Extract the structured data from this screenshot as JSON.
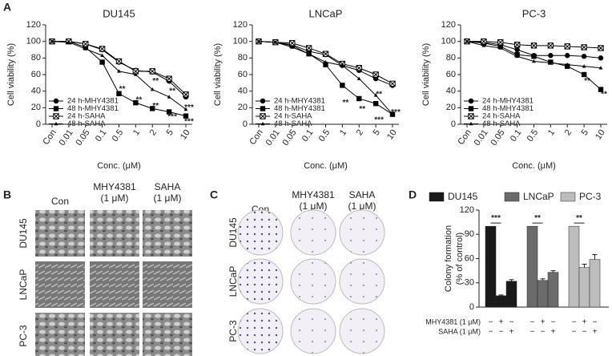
{
  "panel_labels": [
    "A",
    "B",
    "C",
    "D"
  ],
  "chart_data": [
    {
      "type": "line",
      "title": "DU145",
      "ylabel": "Cell viability (%)",
      "xlabel": "Conc. (μM)",
      "categories": [
        "Con",
        "0.01",
        "0.05",
        "0.1",
        "0.5",
        "1",
        "2",
        "5",
        "10"
      ],
      "ylim": [
        0,
        120
      ],
      "yticks": [
        0,
        20,
        40,
        60,
        80,
        100,
        120
      ],
      "series": [
        {
          "name": "24 h-MHY4381",
          "color": "#000000",
          "marker": "circle",
          "values": [
            100,
            100,
            97,
            90,
            75,
            65,
            63,
            52,
            33
          ]
        },
        {
          "name": "48 h-MHY4381",
          "color": "#000000",
          "marker": "square",
          "values": [
            100,
            100,
            93,
            75,
            37,
            26,
            19,
            15,
            10
          ]
        },
        {
          "name": "24 h-SAHA",
          "color": "#000000",
          "marker": "open-square",
          "values": [
            100,
            100,
            97,
            91,
            76,
            64,
            64,
            55,
            36
          ]
        },
        {
          "name": "48 h-SAHA",
          "color": "#000000",
          "marker": "triangle",
          "values": [
            100,
            99,
            91,
            83,
            64,
            60,
            42,
            33,
            18
          ]
        }
      ],
      "annotations": [
        {
          "text": "**",
          "x": "0.5",
          "y": 42
        },
        {
          "text": "**",
          "x": "1",
          "y": 29
        },
        {
          "text": "**",
          "x": "2",
          "y": 52
        },
        {
          "text": "**",
          "x": "2",
          "y": 22
        },
        {
          "text": "**",
          "x": "5",
          "y": 40
        },
        {
          "text": "***",
          "x": "5",
          "y": 9
        },
        {
          "text": "***",
          "x": "10",
          "y": 20
        },
        {
          "text": "***",
          "x": "10",
          "y": 3
        }
      ]
    },
    {
      "type": "line",
      "title": "LNCaP",
      "ylabel": "Cell viability (%)",
      "xlabel": "Conc. (μM)",
      "categories": [
        "Con",
        "0.01",
        "0.05",
        "0.1",
        "0.5",
        "1",
        "2",
        "5",
        "10"
      ],
      "ylim": [
        0,
        120
      ],
      "yticks": [
        0,
        20,
        40,
        60,
        80,
        100,
        120
      ],
      "series": [
        {
          "name": "24 h-MHY4381",
          "color": "#000000",
          "marker": "circle",
          "values": [
            100,
            99,
            96,
            88,
            84,
            71,
            65,
            55,
            47
          ]
        },
        {
          "name": "48 h-MHY4381",
          "color": "#000000",
          "marker": "square",
          "values": [
            100,
            99,
            95,
            85,
            72,
            47,
            31,
            25,
            12
          ]
        },
        {
          "name": "24 h-SAHA",
          "color": "#000000",
          "marker": "open-square",
          "values": [
            100,
            99,
            98,
            92,
            85,
            73,
            68,
            60,
            49
          ]
        },
        {
          "name": "48 h-SAHA",
          "color": "#000000",
          "marker": "triangle",
          "values": [
            100,
            99,
            93,
            85,
            75,
            71,
            55,
            35,
            12
          ]
        }
      ],
      "annotations": [
        {
          "text": "**",
          "x": "1",
          "y": 26
        },
        {
          "text": "**",
          "x": "2",
          "y": 18
        },
        {
          "text": "**",
          "x": "5",
          "y": 36
        },
        {
          "text": "***",
          "x": "5",
          "y": 5
        },
        {
          "text": "***",
          "x": "10",
          "y": 14
        }
      ]
    },
    {
      "type": "line",
      "title": "PC-3",
      "ylabel": "Cell viability (%)",
      "xlabel": "Conc. (μM)",
      "categories": [
        "Con",
        "0.01",
        "0.05",
        "0.1",
        "0.5",
        "1",
        "2",
        "5",
        "10"
      ],
      "ylim": [
        0,
        120
      ],
      "yticks": [
        0,
        20,
        40,
        60,
        80,
        100,
        120
      ],
      "series": [
        {
          "name": "24 h-MHY4381",
          "color": "#000000",
          "marker": "circle",
          "values": [
            100,
            99,
            96,
            90,
            83,
            83,
            83,
            82,
            80
          ]
        },
        {
          "name": "48 h-MHY4381",
          "color": "#000000",
          "marker": "square",
          "values": [
            100,
            98,
            94,
            84,
            82,
            75,
            70,
            60,
            42
          ]
        },
        {
          "name": "24 h-SAHA",
          "color": "#000000",
          "marker": "open-square",
          "values": [
            100,
            100,
            99,
            96,
            95,
            95,
            94,
            93,
            92
          ]
        },
        {
          "name": "48 h-SAHA",
          "color": "#000000",
          "marker": "triangle",
          "values": [
            100,
            95,
            92,
            82,
            76,
            74,
            72,
            70,
            68
          ]
        }
      ],
      "annotations": [
        {
          "text": "**",
          "x": "5",
          "y": 52
        },
        {
          "text": "**",
          "x": "10",
          "y": 36
        }
      ]
    },
    {
      "type": "bar",
      "ylabel": [
        "Colony formation",
        "(% of control)"
      ],
      "ylim": [
        0,
        120
      ],
      "yticks": [
        0,
        30,
        60,
        90,
        120
      ],
      "series": [
        {
          "name": "DU145",
          "color": "#1a1a1a",
          "values": [
            100,
            14,
            32
          ],
          "errors": [
            null,
            1,
            2
          ]
        },
        {
          "name": "LNCaP",
          "color": "#6b6b6b",
          "values": [
            100,
            33,
            43
          ],
          "errors": [
            null,
            2,
            2
          ]
        },
        {
          "name": "PC-3",
          "color": "#bdbdbd",
          "values": [
            100,
            49,
            59
          ],
          "errors": [
            null,
            4,
            6
          ]
        }
      ],
      "annotations": [
        "***",
        "**",
        "**"
      ],
      "conditions": [
        {
          "label": "MHY4381 (1 μM)",
          "signs": [
            "−",
            "+",
            "−"
          ]
        },
        {
          "label": "SAHA (1 μM)",
          "signs": [
            "−",
            "−",
            "+"
          ]
        }
      ]
    }
  ],
  "image_panels": [
    {
      "columns": [
        [
          "Con"
        ],
        [
          "MHY4381",
          "(1 μM)"
        ],
        [
          "SAHA",
          "(1 μM)"
        ]
      ],
      "rows": [
        "DU145",
        "LNCaP",
        "PC-3"
      ]
    },
    {
      "columns": [
        [
          "Con"
        ],
        [
          "MHY4381",
          "(1 μM)"
        ],
        [
          "SAHA",
          "(1 μM)"
        ]
      ],
      "rows": [
        "DU145",
        "LNCaP",
        "PC-3"
      ]
    }
  ]
}
